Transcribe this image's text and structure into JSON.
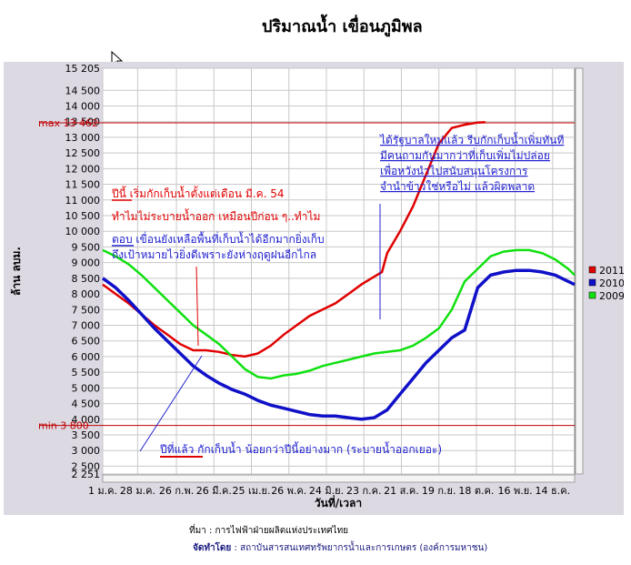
{
  "title": "ปริมาณน้ำ เขื่อนภูมิพล",
  "credits": {
    "source": "ที่มา : การไฟฟ้าฝ่ายผลิตแห่งประเทศไทย",
    "prepared_label": "จัดทำโดย",
    "prepared_by": ": สถาบันสารสนเทศทรัพยากรน้ำและการเกษตร (องค์การมหาชน)"
  },
  "colors": {
    "y2011": "#e00000",
    "y2010": "#1010c8",
    "y2009": "#10e010",
    "grid": "#c8c8c8",
    "plot_bg": "#ffffff",
    "frame": "#dcd9e3"
  },
  "chart_data": {
    "type": "line",
    "title": "ปริมาณน้ำ เขื่อนภูมิพล",
    "xlabel": "วันที่/เวลา",
    "ylabel": "ล้าน ลบม.",
    "ylim": [
      2251,
      15205
    ],
    "xlim": [
      0,
      365
    ],
    "grid": true,
    "legend_position": "right",
    "y_ticks": [
      2251,
      2500,
      3000,
      3500,
      4000,
      4500,
      5000,
      5500,
      6000,
      6500,
      7000,
      7500,
      8000,
      8500,
      9000,
      9500,
      10000,
      10500,
      11000,
      11500,
      12000,
      12500,
      13000,
      13500,
      14000,
      14500,
      15205
    ],
    "y_tick_labels": [
      "2 251",
      "2 500",
      "3 000",
      "3 500",
      "4 000",
      "4 500",
      "5 000",
      "5 500",
      "6 000",
      "6 500",
      "7 000",
      "7 500",
      "8 000",
      "8 500",
      "9 000",
      "9 500",
      "10 000",
      "10 500",
      "11 000",
      "11 500",
      "12 000",
      "12 500",
      "13 000",
      "13 500",
      "14 000",
      "14 500",
      "15 205"
    ],
    "x_ticks": [
      0,
      27,
      57,
      86,
      115,
      144,
      173,
      202,
      231,
      260,
      289,
      319,
      348
    ],
    "x_tick_labels": [
      "1 ม.ค.",
      "28 ม.ค.",
      "26 ก.พ.",
      "26 มี.ค.",
      "25 เม.ย.",
      "26 พ.ค.",
      "24 มิ.ย.",
      "23 ก.ค.",
      "21 ส.ค.",
      "19 ก.ย.",
      "18 ต.ค.",
      "16 พ.ย.",
      "14 ธ.ค."
    ],
    "reference_lines": [
      {
        "label": "max 13 462",
        "value": 13462
      },
      {
        "label": "min 3 800",
        "value": 3800
      }
    ],
    "series": [
      {
        "name": "2011",
        "x": [
          0,
          10,
          20,
          30,
          40,
          50,
          60,
          70,
          80,
          90,
          100,
          110,
          120,
          130,
          140,
          150,
          160,
          170,
          180,
          190,
          200,
          210,
          216,
          220,
          230,
          240,
          250,
          260,
          270,
          280,
          290,
          296
        ],
        "values": [
          8300,
          8000,
          7700,
          7350,
          7000,
          6700,
          6400,
          6200,
          6200,
          6150,
          6050,
          6000,
          6100,
          6350,
          6700,
          7000,
          7300,
          7500,
          7700,
          8000,
          8300,
          8550,
          8700,
          9300,
          10000,
          10800,
          11800,
          12800,
          13300,
          13400,
          13470,
          13480
        ]
      },
      {
        "name": "2010",
        "x": [
          0,
          10,
          20,
          30,
          40,
          50,
          60,
          70,
          80,
          90,
          100,
          110,
          120,
          130,
          140,
          150,
          160,
          170,
          180,
          190,
          200,
          210,
          220,
          230,
          240,
          250,
          260,
          270,
          280,
          290,
          300,
          310,
          320,
          330,
          340,
          350,
          360,
          365
        ],
        "values": [
          8500,
          8200,
          7800,
          7350,
          6900,
          6500,
          6100,
          5700,
          5400,
          5150,
          4950,
          4800,
          4600,
          4450,
          4350,
          4250,
          4150,
          4100,
          4100,
          4050,
          4000,
          4050,
          4300,
          4800,
          5300,
          5800,
          6200,
          6600,
          6850,
          8200,
          8600,
          8700,
          8750,
          8750,
          8700,
          8600,
          8400,
          8300
        ]
      },
      {
        "name": "2009",
        "x": [
          0,
          10,
          20,
          30,
          40,
          50,
          60,
          70,
          80,
          90,
          100,
          110,
          120,
          130,
          140,
          150,
          160,
          170,
          180,
          190,
          200,
          210,
          220,
          230,
          240,
          250,
          260,
          270,
          280,
          290,
          300,
          310,
          320,
          330,
          340,
          350,
          360,
          365
        ],
        "values": [
          9400,
          9200,
          8950,
          8600,
          8200,
          7800,
          7400,
          7000,
          6700,
          6400,
          6000,
          5600,
          5350,
          5300,
          5400,
          5450,
          5550,
          5700,
          5800,
          5900,
          6000,
          6100,
          6150,
          6200,
          6350,
          6600,
          6900,
          7500,
          8400,
          8800,
          9200,
          9350,
          9400,
          9400,
          9300,
          9100,
          8800,
          8600
        ]
      }
    ],
    "annotations": [
      {
        "lines": [
          "ได้รัฐบาลใหม่แล้ว รีบกักเก็บน้ำเพิ่มทันที",
          "มีคนถามกันมากว่าที่เก็บเพิ่มไม่ปล่อย",
          "เพื่อหวังนำไปสนับสนุนโครงการ",
          "จำนำข้าวใช่หรือไม่ แล้วผิดพลาด"
        ],
        "color": "#2020d0"
      },
      {
        "highlight": "ปีนี้",
        "lines": [
          "ปีนี้ เริ่มกักเก็บน้ำตั้งแต่เดือน มี.ค. 54",
          "ทำไมไม่ระบายน้ำออก เหมือนปีก่อน ๆ..ทำไม"
        ],
        "color": "#e00000"
      },
      {
        "highlight": "ตอบ",
        "lines": [
          "ตอบ  เขื่อนยังเหลือพื้นที่เก็บน้ำได้อีกมากยิ่งเก็บ",
          "ถึงเป้าหมายไวยิ่งดีเพราะยังห่างฤดูฝนอีกไกล"
        ],
        "color": "#2020d0"
      },
      {
        "highlight": "ปีที่แล้ว",
        "lines": [
          "ปีที่แล้ว กักเก็บน้ำ น้อยกว่าปีนี้อย่างมาก (ระบายน้ำออกเยอะ)"
        ],
        "color": "#2020d0"
      }
    ]
  }
}
